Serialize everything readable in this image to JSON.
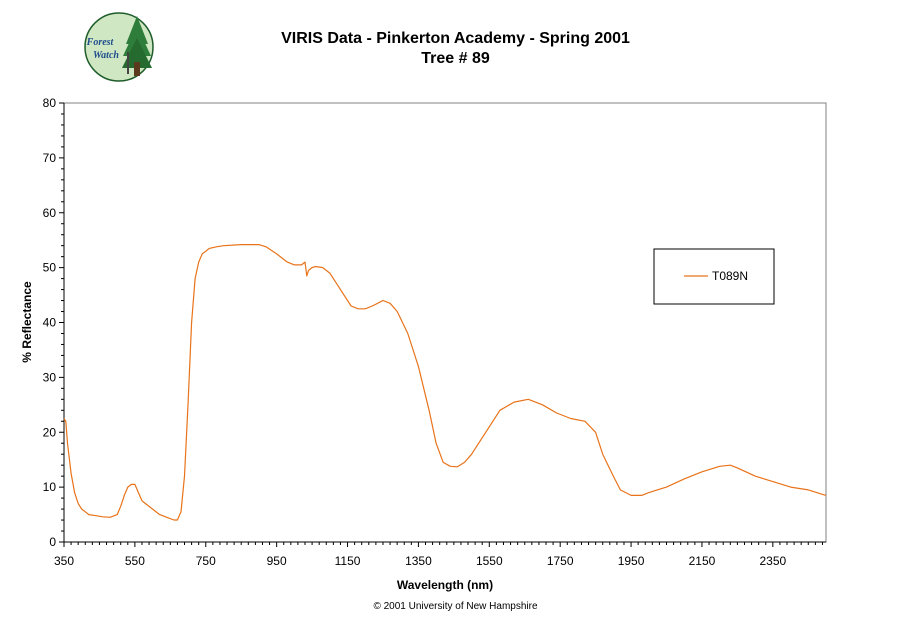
{
  "logo": {
    "text_line1": "Forest",
    "text_line2": "Watch"
  },
  "copyright": "© 2001 University of New Hampshire",
  "colors": {
    "series": "#E8731A",
    "axis": "#000000",
    "background": "#ffffff"
  },
  "chart_data": {
    "type": "line",
    "title": "VIRIS Data - Pinkerton Academy - Spring 2001",
    "subtitle": "Tree #  89",
    "xlabel": "Wavelength (nm)",
    "ylabel": "% Reflectance",
    "xlim": [
      350,
      2500
    ],
    "ylim": [
      0,
      80
    ],
    "xticks": [
      350,
      550,
      750,
      950,
      1150,
      1350,
      1550,
      1750,
      1950,
      2150,
      2350
    ],
    "yticks": [
      0,
      10,
      20,
      30,
      40,
      50,
      60,
      70,
      80
    ],
    "grid": false,
    "legend_position": "right",
    "series": [
      {
        "name": "T089N",
        "color": "#E8731A",
        "x": [
          350,
          355,
          360,
          370,
          380,
          390,
          400,
          410,
          420,
          440,
          460,
          480,
          500,
          510,
          520,
          530,
          540,
          550,
          560,
          570,
          580,
          600,
          620,
          640,
          660,
          670,
          680,
          690,
          700,
          710,
          720,
          730,
          740,
          750,
          760,
          780,
          800,
          850,
          900,
          920,
          950,
          980,
          1000,
          1020,
          1030,
          1035,
          1040,
          1050,
          1060,
          1080,
          1100,
          1120,
          1140,
          1160,
          1180,
          1200,
          1220,
          1250,
          1270,
          1290,
          1320,
          1350,
          1380,
          1400,
          1420,
          1440,
          1460,
          1480,
          1500,
          1520,
          1550,
          1580,
          1620,
          1660,
          1700,
          1740,
          1780,
          1820,
          1850,
          1870,
          1900,
          1920,
          1950,
          1980,
          2000,
          2050,
          2100,
          2150,
          2200,
          2230,
          2250,
          2300,
          2350,
          2400,
          2450,
          2500
        ],
        "y": [
          22.5,
          22,
          18,
          12.5,
          9,
          7,
          6,
          5.5,
          5,
          4.8,
          4.6,
          4.5,
          5,
          6.5,
          8.5,
          10,
          10.5,
          10.5,
          9,
          7.5,
          7,
          6,
          5,
          4.5,
          4,
          4,
          5.5,
          12,
          25,
          40,
          48,
          51,
          52.5,
          53,
          53.5,
          53.8,
          54,
          54.2,
          54.2,
          53.8,
          52.5,
          51,
          50.5,
          50.5,
          51,
          48.5,
          49.5,
          50,
          50.2,
          50,
          49,
          47,
          45,
          43,
          42.5,
          42.5,
          43,
          44,
          43.5,
          42,
          38,
          32,
          24,
          18,
          14.5,
          13.8,
          13.7,
          14.5,
          16,
          18,
          21,
          24,
          25.5,
          26,
          25,
          23.5,
          22.5,
          22,
          20,
          16,
          12,
          9.5,
          8.5,
          8.5,
          9,
          10,
          11.5,
          12.8,
          13.8,
          14,
          13.5,
          12,
          11,
          10,
          9.5,
          8.5
        ]
      }
    ]
  }
}
